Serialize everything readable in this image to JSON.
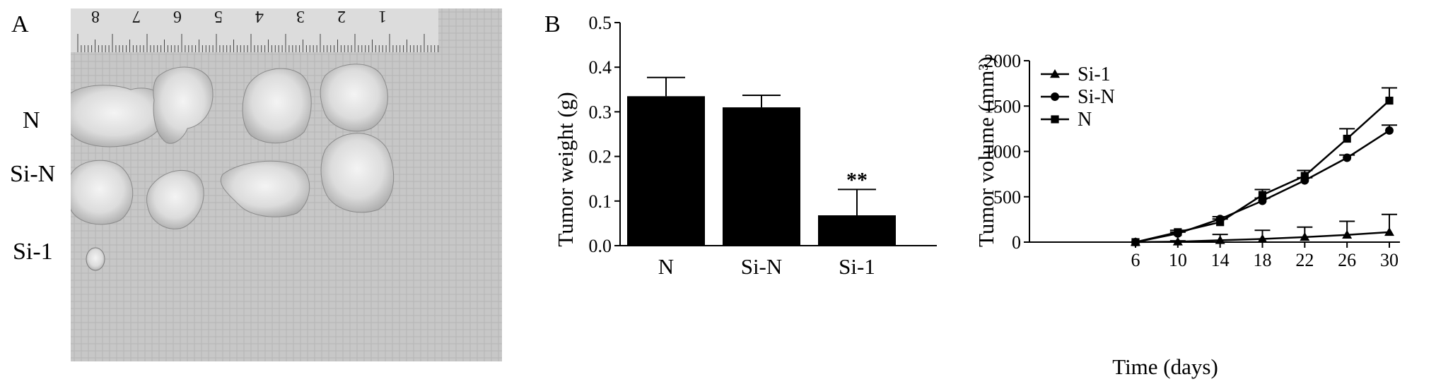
{
  "figure": {
    "panel_a": {
      "letter": "A",
      "ruler_numbers": [
        "8",
        "7",
        "6",
        "5",
        "4",
        "3",
        "2",
        "1"
      ],
      "row_labels": [
        "N",
        "Si-N",
        "Si-1"
      ]
    },
    "panel_b": {
      "letter": "B"
    }
  },
  "chart_data": [
    {
      "type": "bar",
      "categories": [
        "N",
        "Si-N",
        "Si-1"
      ],
      "values": [
        0.335,
        0.31,
        0.068
      ],
      "errors": [
        0.042,
        0.027,
        0.058
      ],
      "annotations": [
        {
          "category": "Si-1",
          "text": "**"
        }
      ],
      "xlabel": "",
      "ylabel": "Tumor weight (g)",
      "ylim": [
        0,
        0.5
      ],
      "yticks": [
        "0.0",
        "0.1",
        "0.2",
        "0.3",
        "0.4",
        "0.5"
      ],
      "bar_color": "#000000"
    },
    {
      "type": "line",
      "x": [
        6,
        10,
        14,
        18,
        22,
        26,
        30
      ],
      "xticks": [
        "6",
        "10",
        "14",
        "18",
        "22",
        "26",
        "30"
      ],
      "series": [
        {
          "name": "Si-1",
          "marker": "triangle",
          "values": [
            0,
            5,
            20,
            35,
            55,
            80,
            110
          ],
          "errors": [
            0,
            10,
            65,
            95,
            110,
            150,
            195
          ]
        },
        {
          "name": "Si-N",
          "marker": "circle",
          "values": [
            0,
            95,
            255,
            455,
            680,
            930,
            1230
          ],
          "errors": [
            0,
            15,
            25,
            30,
            30,
            30,
            60
          ]
        },
        {
          "name": "N",
          "marker": "square",
          "values": [
            0,
            110,
            220,
            520,
            730,
            1140,
            1560
          ],
          "errors": [
            0,
            20,
            35,
            60,
            60,
            110,
            140
          ]
        }
      ],
      "xlabel": "Time (days)",
      "ylabel": "Tumor volume (mm³)",
      "ylim": [
        0,
        2000
      ],
      "yticks": [
        "0",
        "500",
        "1000",
        "1500",
        "2000"
      ],
      "legend_position": "top-left",
      "line_color": "#000000"
    }
  ]
}
